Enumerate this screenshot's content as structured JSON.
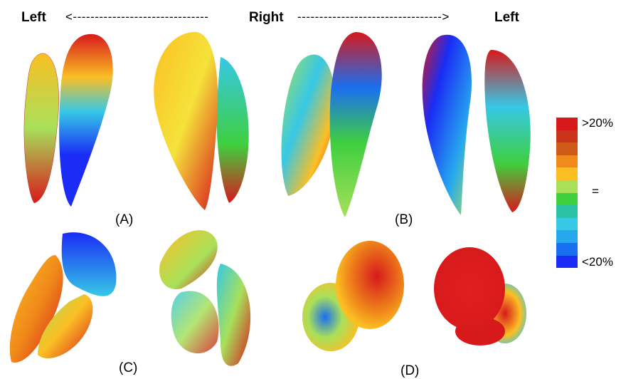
{
  "header": {
    "left_label": "Left",
    "arrow_left": "<-------------------------------",
    "center_label": "Right",
    "arrow_right": "--------------------------------->",
    "right_label": "Left"
  },
  "panels": {
    "a": "(A)",
    "b": "(B)",
    "c": "(C)",
    "d": "(D)"
  },
  "color_scale": {
    "top_label": ">20%",
    "mid_label": "=",
    "bottom_label": "<20%",
    "colors": [
      "#d7191c",
      "#c8331a",
      "#cf5a17",
      "#f08a1a",
      "#fbbf24",
      "#a8e05a",
      "#3fcf3f",
      "#2cc2a6",
      "#36c8e6",
      "#26a8ee",
      "#1a6ff0",
      "#1a2cf5"
    ]
  }
}
